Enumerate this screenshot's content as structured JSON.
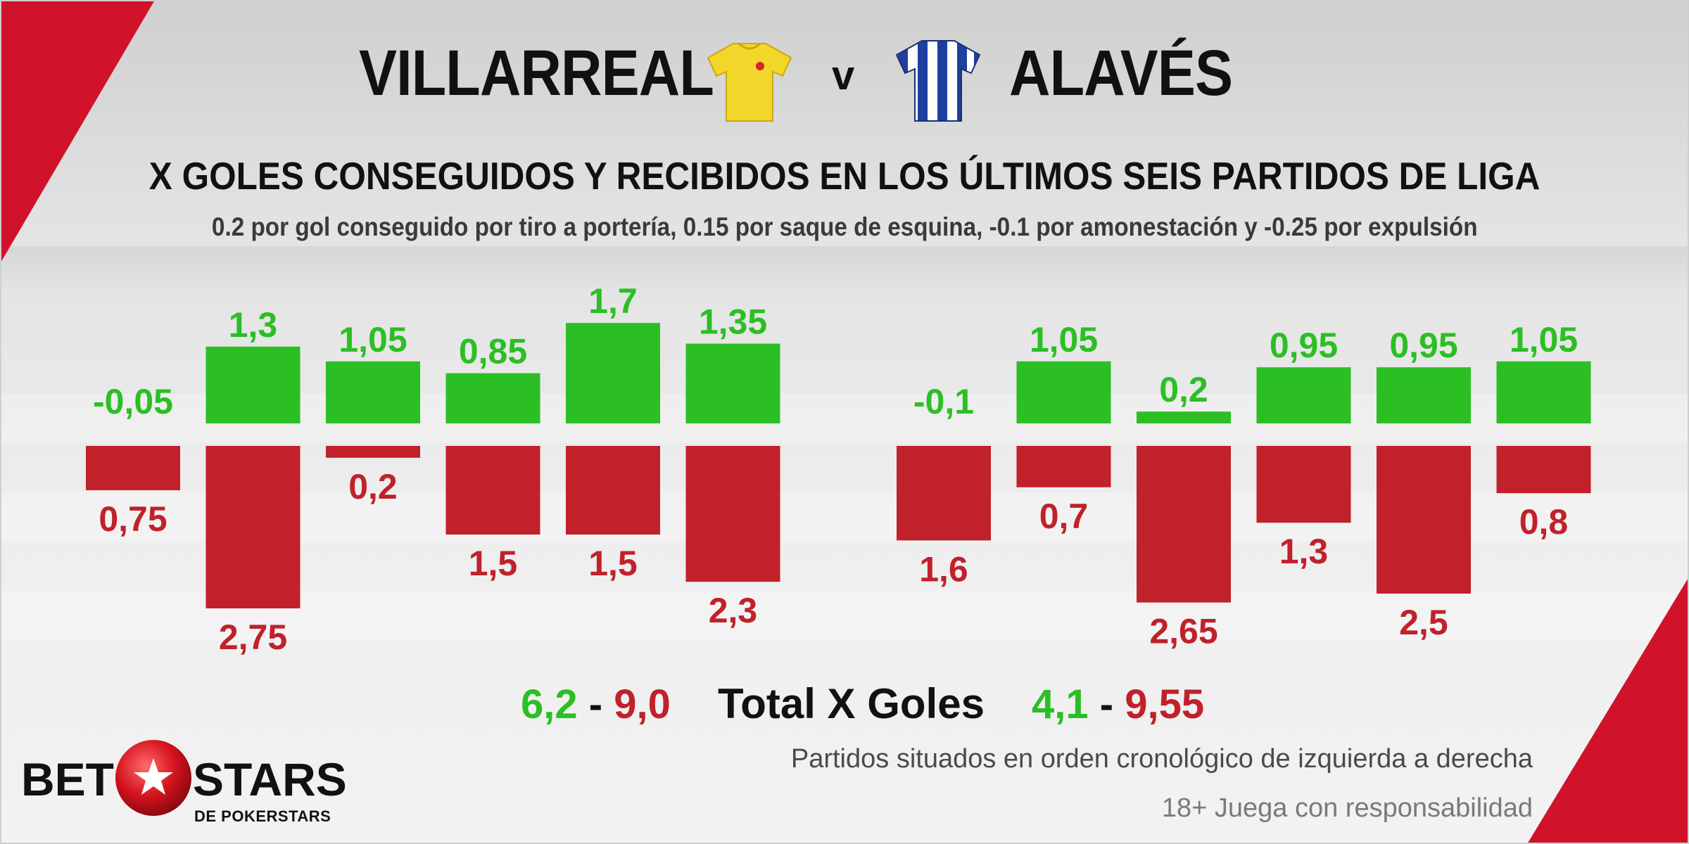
{
  "header": {
    "home_team": "VILLARREAL",
    "vs": "v",
    "away_team": "ALAVÉS",
    "title": "X GOLES CONSEGUIDOS Y RECIBIDOS EN LOS ÚLTIMOS SEIS PARTIDOS DE LIGA",
    "subtitle": "0.2 por gol conseguido por tiro a portería, 0.15 por saque de esquina, -0.1 por amonestación y -0.25 por expulsión"
  },
  "icons": {
    "home_shirt": "yellow-football-shirt-icon",
    "away_shirt": "blue-white-striped-football-shirt-icon",
    "logo_ball": "red-ball-star-icon"
  },
  "colors": {
    "scored": "#2bbf24",
    "conceded": "#c0212a",
    "accent": "#d0122a"
  },
  "chart_data": [
    {
      "type": "bar",
      "team": "VILLARREAL",
      "series": [
        {
          "name": "",
          "values": [
            -0.05,
            1.3,
            1.05,
            0.85,
            1.7,
            1.35
          ],
          "labels": [
            "-0,05",
            "1,3",
            "1,05",
            "0,85",
            "1,7",
            "1,35"
          ]
        },
        {
          "name": "",
          "values": [
            0.75,
            2.75,
            0.2,
            1.5,
            1.5,
            2.3
          ],
          "labels": [
            "0,75",
            "2,75",
            "0,2",
            "1,5",
            "1,5",
            "2,3"
          ]
        }
      ]
    },
    {
      "type": "bar",
      "team": "ALAVÉS",
      "series": [
        {
          "name": "",
          "values": [
            -0.1,
            1.05,
            0.2,
            0.95,
            0.95,
            1.05
          ],
          "labels": [
            "-0,1",
            "1,05",
            "0,2",
            "0,95",
            "0,95",
            "1,05"
          ]
        },
        {
          "name": "",
          "values": [
            1.6,
            0.7,
            2.65,
            1.3,
            2.5,
            0.8
          ],
          "labels": [
            "1,6",
            "0,7",
            "2,65",
            "1,3",
            "2,5",
            "0,8"
          ]
        }
      ]
    }
  ],
  "totals": {
    "label": "Total X Goles",
    "separator": "-",
    "home_scored": "6,2",
    "home_conceded": "9,0",
    "away_scored": "4,1",
    "away_conceded": "9,55"
  },
  "footer": {
    "note": "Partidos situados en orden cronológico de izquierda a derecha",
    "responsible": "18+ Juega con responsabilidad",
    "logo_left": "BET",
    "logo_right": "STARS",
    "logo_sub": "DE POKERSTARS"
  }
}
